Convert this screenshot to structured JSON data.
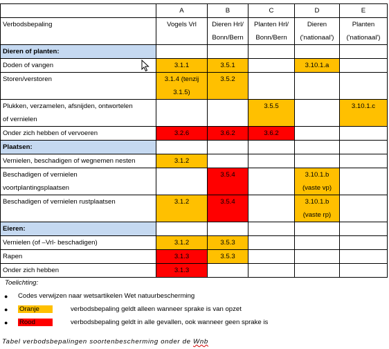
{
  "table": {
    "header_letters": [
      "A",
      "B",
      "C",
      "D",
      "E"
    ],
    "header_label": "Verbodsbepaling",
    "header_cols": [
      [
        "Vogels Vrl",
        ""
      ],
      [
        "Dieren Hrl/",
        "Bonn/Bern"
      ],
      [
        "Planten Hrl/",
        "Bonn/Bern"
      ],
      [
        "Dieren",
        "('nationaal')"
      ],
      [
        "Planten",
        "('nationaal')"
      ]
    ],
    "sections": [
      {
        "title": "Dieren of planten:",
        "rows": [
          {
            "label": [
              "Doden of vangen"
            ],
            "cells": [
              {
                "text": [
                  "3.1.1"
                ],
                "color": "orange"
              },
              {
                "text": [
                  "3.5.1"
                ],
                "color": "orange"
              },
              {
                "text": [
                  ""
                ],
                "color": ""
              },
              {
                "text": [
                  "3.10.1.a"
                ],
                "color": "orange"
              },
              {
                "text": [
                  ""
                ],
                "color": ""
              }
            ]
          },
          {
            "label": [
              "Storen/verstoren"
            ],
            "cells": [
              {
                "text": [
                  "3.1.4 (tenzij",
                  "3.1.5)"
                ],
                "color": "orange"
              },
              {
                "text": [
                  "3.5.2"
                ],
                "color": "orange"
              },
              {
                "text": [
                  ""
                ],
                "color": ""
              },
              {
                "text": [
                  ""
                ],
                "color": ""
              },
              {
                "text": [
                  ""
                ],
                "color": ""
              }
            ]
          },
          {
            "label": [
              "Plukken, verzamelen, afsnijden, ontwortelen",
              "of vernielen"
            ],
            "cells": [
              {
                "text": [
                  ""
                ],
                "color": ""
              },
              {
                "text": [
                  ""
                ],
                "color": ""
              },
              {
                "text": [
                  "3.5.5"
                ],
                "color": "orange"
              },
              {
                "text": [
                  ""
                ],
                "color": ""
              },
              {
                "text": [
                  "3.10.1.c"
                ],
                "color": "orange"
              }
            ]
          },
          {
            "label": [
              "Onder zich hebben of vervoeren"
            ],
            "cells": [
              {
                "text": [
                  "3.2.6"
                ],
                "color": "red"
              },
              {
                "text": [
                  "3.6.2"
                ],
                "color": "red"
              },
              {
                "text": [
                  "3.6.2"
                ],
                "color": "red"
              },
              {
                "text": [
                  ""
                ],
                "color": ""
              },
              {
                "text": [
                  ""
                ],
                "color": ""
              }
            ]
          }
        ]
      },
      {
        "title": "Plaatsen:",
        "rows": [
          {
            "label": [
              "Vernielen, beschadigen of wegnemen nesten"
            ],
            "cells": [
              {
                "text": [
                  "3.1.2"
                ],
                "color": "orange"
              },
              {
                "text": [
                  ""
                ],
                "color": ""
              },
              {
                "text": [
                  ""
                ],
                "color": ""
              },
              {
                "text": [
                  ""
                ],
                "color": ""
              },
              {
                "text": [
                  ""
                ],
                "color": ""
              }
            ]
          },
          {
            "label": [
              "Beschadigen of vernielen",
              "voortplantingsplaatsen"
            ],
            "cells": [
              {
                "text": [
                  ""
                ],
                "color": ""
              },
              {
                "text": [
                  "3.5.4"
                ],
                "color": "red"
              },
              {
                "text": [
                  ""
                ],
                "color": ""
              },
              {
                "text": [
                  "3.10.1.b",
                  "(vaste vp)"
                ],
                "color": "orange"
              },
              {
                "text": [
                  ""
                ],
                "color": ""
              }
            ]
          },
          {
            "label": [
              "Beschadigen of vernielen rustplaatsen"
            ],
            "cells": [
              {
                "text": [
                  "3.1.2"
                ],
                "color": "orange"
              },
              {
                "text": [
                  "3.5.4"
                ],
                "color": "red"
              },
              {
                "text": [
                  ""
                ],
                "color": ""
              },
              {
                "text": [
                  "3.10.1.b",
                  "(vaste rp)"
                ],
                "color": "orange"
              },
              {
                "text": [
                  ""
                ],
                "color": ""
              }
            ],
            "tall": true
          }
        ]
      },
      {
        "title": "Eieren:",
        "rows": [
          {
            "label": [
              "Vernielen (of –Vrl- beschadigen)"
            ],
            "cells": [
              {
                "text": [
                  "3.1.2"
                ],
                "color": "orange"
              },
              {
                "text": [
                  "3.5.3"
                ],
                "color": "orange"
              },
              {
                "text": [
                  ""
                ],
                "color": ""
              },
              {
                "text": [
                  ""
                ],
                "color": ""
              },
              {
                "text": [
                  ""
                ],
                "color": ""
              }
            ]
          },
          {
            "label": [
              "Rapen"
            ],
            "cells": [
              {
                "text": [
                  "3.1.3"
                ],
                "color": "red"
              },
              {
                "text": [
                  "3.5.3"
                ],
                "color": "orange"
              },
              {
                "text": [
                  ""
                ],
                "color": ""
              },
              {
                "text": [
                  ""
                ],
                "color": ""
              },
              {
                "text": [
                  ""
                ],
                "color": ""
              }
            ]
          },
          {
            "label": [
              "Onder zich hebben"
            ],
            "cells": [
              {
                "text": [
                  "3.1.3"
                ],
                "color": "red"
              },
              {
                "text": [
                  ""
                ],
                "color": ""
              },
              {
                "text": [
                  ""
                ],
                "color": ""
              },
              {
                "text": [
                  ""
                ],
                "color": ""
              },
              {
                "text": [
                  ""
                ],
                "color": ""
              }
            ]
          }
        ]
      }
    ]
  },
  "colors": {
    "orange": "#ffc000",
    "red": "#ff0000",
    "section": "#c5d9f1"
  },
  "legend": {
    "title": "Toelichting:",
    "codes_note": "Codes verwijzen naar wetsartikelen Wet natuurbescherming",
    "orange_label": "Oranje",
    "orange_desc": "verbodsbepaling geldt alleen wanneer sprake is van opzet",
    "red_label": "Rood",
    "red_desc": "verbodsbepaling geldt in alle gevallen, ook wanneer geen sprake is"
  },
  "caption": {
    "main": "Tabel verbodsbepalingen soortenbescherming onder de ",
    "underlined": "Wnb"
  },
  "icons": {
    "bullet": "bullet-icon",
    "cursor": "mouse-cursor-icon"
  }
}
